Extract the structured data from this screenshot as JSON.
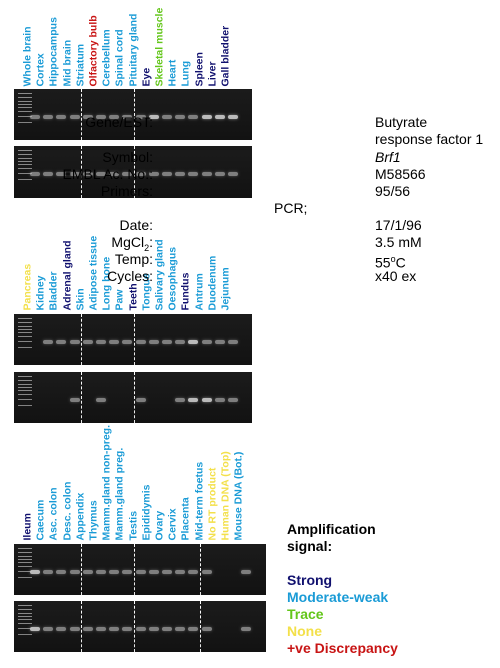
{
  "colors": {
    "strong": "#10106e",
    "moderate": "#1a9bd6",
    "trace": "#63c61a",
    "none": "#f3e04a",
    "discrepancy": "#c81414"
  },
  "panels": [
    {
      "lanes": [
        {
          "label": "Whole brain",
          "cls": "moderate"
        },
        {
          "label": "Cortex",
          "cls": "moderate"
        },
        {
          "label": "Hippocampus",
          "cls": "moderate"
        },
        {
          "label": "Mid brain",
          "cls": "moderate"
        },
        {
          "label": "Striatum",
          "cls": "moderate"
        },
        {
          "label": "Olfactory bulb",
          "cls": "discrepancy"
        },
        {
          "label": "Cerebellum",
          "cls": "moderate"
        },
        {
          "label": "Spinal cord",
          "cls": "moderate"
        },
        {
          "label": "Pituitary gland",
          "cls": "moderate"
        },
        {
          "label": "Eye",
          "cls": "strong"
        },
        {
          "label": "Skeletal muscle",
          "cls": "trace"
        },
        {
          "label": "Heart",
          "cls": "moderate"
        },
        {
          "label": "Lung",
          "cls": "moderate"
        },
        {
          "label": "Spleen",
          "cls": "strong"
        },
        {
          "label": "Liver",
          "cls": "strong"
        },
        {
          "label": "Gall bladder",
          "cls": "strong"
        }
      ]
    },
    {
      "lanes": [
        {
          "label": "Pancreas",
          "cls": "none"
        },
        {
          "label": "Kidney",
          "cls": "moderate"
        },
        {
          "label": "Bladder",
          "cls": "moderate"
        },
        {
          "label": "Adrenal gland",
          "cls": "strong"
        },
        {
          "label": "Skin",
          "cls": "moderate"
        },
        {
          "label": "Adipose tissue",
          "cls": "moderate"
        },
        {
          "label": "Long bone",
          "cls": "moderate"
        },
        {
          "label": "Paw",
          "cls": "moderate"
        },
        {
          "label": "Teeth",
          "cls": "strong"
        },
        {
          "label": "Tongue",
          "cls": "moderate"
        },
        {
          "label": "Salivary gland",
          "cls": "moderate"
        },
        {
          "label": "Oesophagus",
          "cls": "moderate"
        },
        {
          "label": "Fundus",
          "cls": "strong"
        },
        {
          "label": "Antrum",
          "cls": "moderate"
        },
        {
          "label": "Duodenum",
          "cls": "moderate"
        },
        {
          "label": "Jejunum",
          "cls": "moderate"
        }
      ]
    },
    {
      "lanes": [
        {
          "label": "Ileum",
          "cls": "strong"
        },
        {
          "label": "Caecum",
          "cls": "moderate"
        },
        {
          "label": "Asc. colon",
          "cls": "moderate"
        },
        {
          "label": "Desc. colon",
          "cls": "moderate"
        },
        {
          "label": "Appendix",
          "cls": "moderate"
        },
        {
          "label": "Thymus",
          "cls": "moderate"
        },
        {
          "label": "Mamm.gland non-preg.",
          "cls": "moderate"
        },
        {
          "label": "Mamm.gland preg.",
          "cls": "moderate"
        },
        {
          "label": "Testis",
          "cls": "moderate"
        },
        {
          "label": "Epididymis",
          "cls": "moderate"
        },
        {
          "label": "Ovary",
          "cls": "moderate"
        },
        {
          "label": "Cervix",
          "cls": "moderate"
        },
        {
          "label": "Placenta",
          "cls": "moderate"
        },
        {
          "label": "Mid-term foetus",
          "cls": "moderate"
        },
        {
          "label": "No RT product",
          "cls": "none"
        },
        {
          "label": "Human DNA (Top)",
          "cls": "none"
        },
        {
          "label": "Mouse DNA (Bot.)",
          "cls": "moderate"
        }
      ]
    }
  ],
  "info": {
    "gene_key": "Gene/EST:",
    "gene_val_1": "Butyrate",
    "gene_val_2": "response factor 1",
    "symbol_key": "Symbol:",
    "symbol_val": "Brf1",
    "embl_key": "EMBL Ac. No.:",
    "embl_val": "M58566",
    "primers_key": "Primers:",
    "primers_val": "95/56",
    "pcr_key": "PCR;",
    "date_key": "Date:",
    "date_val": "17/1/96",
    "mgcl_key_pre": "MgCl",
    "mgcl_key_sub": "2",
    "mgcl_key_post": ":",
    "mgcl_val": "3.5 mM",
    "temp_key": "Temp:",
    "temp_val_pre": "55",
    "temp_val_sup": "o",
    "temp_val_post": "C",
    "cycles_key": "Cycles:",
    "cycles_val": "x40 ex"
  },
  "legend": {
    "title_1": "Amplification",
    "title_2": "signal:",
    "strong": "Strong",
    "moderate": "Moderate-weak",
    "trace": "Trace",
    "none": "None",
    "discrepancy": "+ve Discrepancy"
  }
}
